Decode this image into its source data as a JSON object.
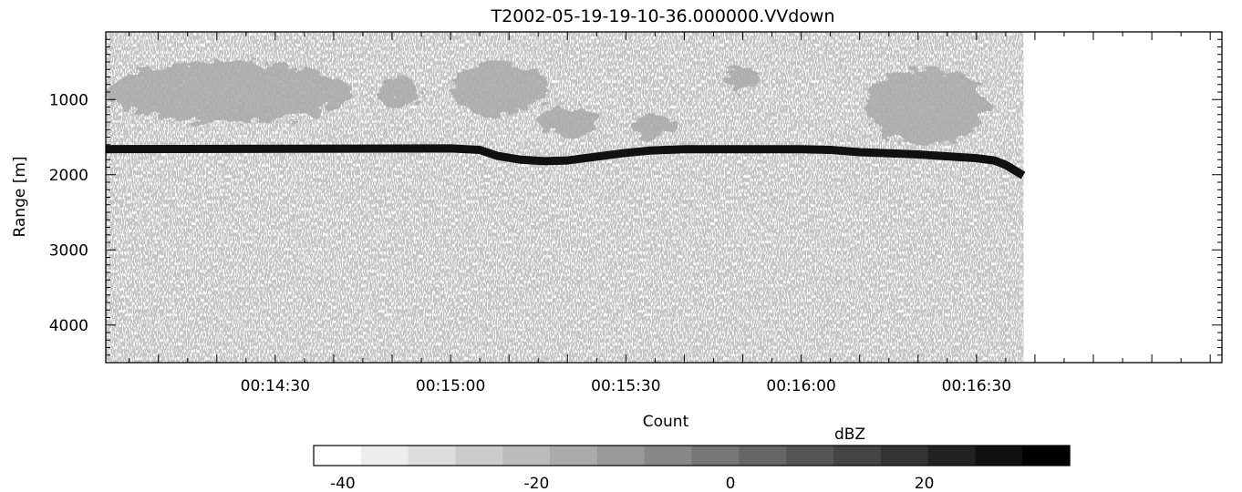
{
  "chart_data": {
    "type": "heatmap",
    "title": "T2002-05-19-19-10-36.000000.VVdown",
    "xlabel": "Count",
    "ylabel": "Range [m]",
    "x_tick_labels": [
      "00:14:30",
      "00:15:00",
      "00:15:30",
      "00:16:00",
      "00:16:30"
    ],
    "x_tick_seconds": [
      870,
      900,
      930,
      960,
      990
    ],
    "xlim_seconds": [
      841,
      1032
    ],
    "y_tick_labels": [
      "1000",
      "2000",
      "3000",
      "4000"
    ],
    "y_ticks": [
      1000,
      2000,
      3000,
      4000
    ],
    "ylim": [
      4500,
      100
    ],
    "y_reversed": true,
    "data_end_seconds": 998,
    "ground_return": {
      "description_units": "time (s) vs range (m)",
      "points": [
        [
          841,
          1660
        ],
        [
          900,
          1650
        ],
        [
          905,
          1670
        ],
        [
          908,
          1750
        ],
        [
          912,
          1800
        ],
        [
          916,
          1820
        ],
        [
          920,
          1810
        ],
        [
          922,
          1790
        ],
        [
          925,
          1760
        ],
        [
          930,
          1710
        ],
        [
          934,
          1680
        ],
        [
          940,
          1660
        ],
        [
          960,
          1660
        ],
        [
          965,
          1670
        ],
        [
          970,
          1700
        ],
        [
          980,
          1730
        ],
        [
          990,
          1780
        ],
        [
          993,
          1810
        ],
        [
          995,
          1870
        ],
        [
          998,
          2010
        ]
      ]
    },
    "cloud_regions": [
      {
        "x": [
          841,
          883
        ],
        "y": [
          500,
          1300
        ]
      },
      {
        "x": [
          888,
          895
        ],
        "y": [
          700,
          1100
        ]
      },
      {
        "x": [
          900,
          917
        ],
        "y": [
          500,
          1200
        ]
      },
      {
        "x": [
          915,
          925
        ],
        "y": [
          1100,
          1500
        ]
      },
      {
        "x": [
          931,
          938
        ],
        "y": [
          1200,
          1500
        ]
      },
      {
        "x": [
          946,
          953
        ],
        "y": [
          600,
          850
        ]
      },
      {
        "x": [
          971,
          992
        ],
        "y": [
          600,
          1600
        ]
      }
    ],
    "colorbar": {
      "label": "dBZ",
      "tick_labels": [
        "-40",
        "-20",
        "0",
        "20"
      ],
      "ticks": [
        -40,
        -20,
        0,
        20
      ],
      "range": [
        -43,
        35
      ],
      "n_levels": 16,
      "colormap": "white-to-black grayscale"
    }
  }
}
